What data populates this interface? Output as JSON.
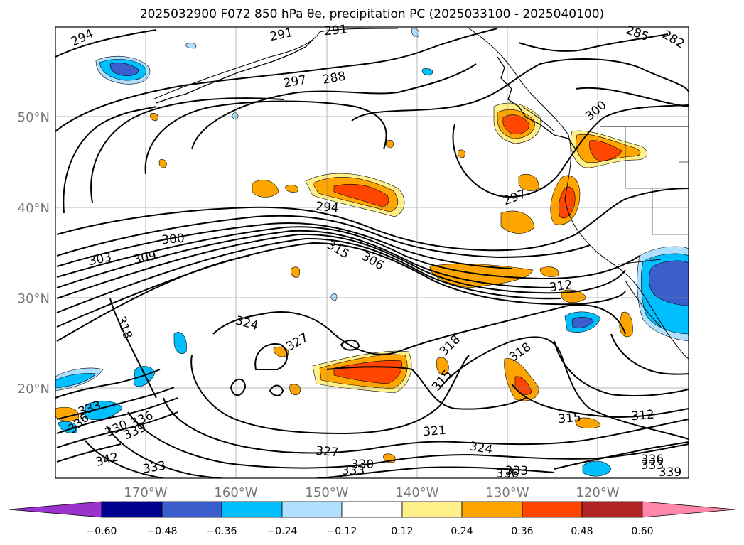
{
  "title": "2025032900 F072 850 hPa θe, precipitation PC (2025033100 - 2025040100)",
  "map": {
    "lon_labels": [
      "170°W",
      "160°W",
      "150°W",
      "140°W",
      "130°W",
      "120°W"
    ],
    "lat_labels": [
      "50°N",
      "40°N",
      "30°N",
      "20°N"
    ],
    "contour_labels": [
      "294",
      "291",
      "291",
      "288",
      "285",
      "282",
      "300",
      "297",
      "294",
      "297",
      "300",
      "303",
      "309",
      "315",
      "306",
      "312",
      "318",
      "324",
      "327",
      "318",
      "315",
      "318",
      "315",
      "312",
      "321",
      "324",
      "327",
      "330",
      "333",
      "336",
      "333",
      "336",
      "339",
      "333",
      "330",
      "339",
      "336",
      "336",
      "342",
      "333",
      "333"
    ],
    "colors": {
      "neg_060": "#9933cc",
      "neg_048": "#000090",
      "neg_036": "#3a5fcd",
      "neg_024": "#00bfff",
      "neg_012": "#b0e0ff",
      "zero": "#ffffff",
      "pos_012": "#fff08a",
      "pos_024": "#ffa500",
      "pos_036": "#ff4500",
      "pos_048": "#b22222",
      "pos_060": "#ff88aa"
    }
  },
  "colorbar": {
    "ticks": [
      "−0.60",
      "−0.48",
      "−0.36",
      "−0.24",
      "−0.12",
      "0.12",
      "0.24",
      "0.36",
      "0.48",
      "0.60"
    ]
  }
}
